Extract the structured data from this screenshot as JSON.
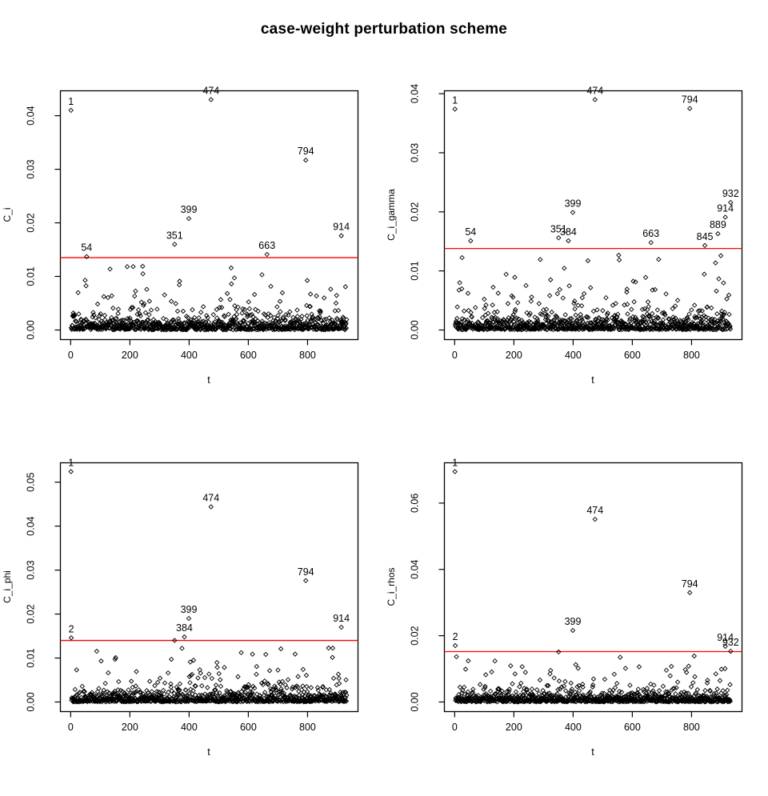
{
  "chart_data": {
    "type": "scatter",
    "title": "case-weight perturbation scheme",
    "xlabel": "t",
    "xlim": [
      -36,
      969
    ],
    "xticks": [
      0,
      200,
      400,
      600,
      800
    ],
    "xtick_labels": [
      "0",
      "200",
      "400",
      "600",
      "800"
    ],
    "n_cases": 932,
    "point_marker": "open-diamond",
    "point_color": "#000000",
    "threshold_color": "#ff0000",
    "grid": "off",
    "legend": "none",
    "noise": {
      "count": 932,
      "small_mean": 0.0009,
      "large_mean": 0.0036,
      "large_fraction": 0.18,
      "reference_threshold": 0.0135
    },
    "panels": [
      {
        "id": "C_i",
        "row": 0,
        "col": 0,
        "ylabel": "C_i",
        "ymax_data": 0.043,
        "yticks": [
          0,
          0.01,
          0.02,
          0.03,
          0.04
        ],
        "ytick_labels": [
          "0.00",
          "0.01",
          "0.02",
          "0.03",
          "0.04"
        ],
        "threshold": 0.0135,
        "noise_seed": 101,
        "labeled_points": [
          {
            "label": "1",
            "t": 1,
            "y": 0.041
          },
          {
            "label": "54",
            "t": 54,
            "y": 0.0137
          },
          {
            "label": "351",
            "t": 351,
            "y": 0.016
          },
          {
            "label": "399",
            "t": 399,
            "y": 0.0208
          },
          {
            "label": "474",
            "t": 474,
            "y": 0.043
          },
          {
            "label": "663",
            "t": 663,
            "y": 0.0141
          },
          {
            "label": "794",
            "t": 794,
            "y": 0.0317
          },
          {
            "label": "914",
            "t": 914,
            "y": 0.0176
          }
        ],
        "extra_points": []
      },
      {
        "id": "C_i_gamma",
        "row": 0,
        "col": 1,
        "ylabel": "C_i_gamma",
        "ymax_data": 0.039,
        "yticks": [
          0,
          0.01,
          0.02,
          0.03,
          0.04
        ],
        "ytick_labels": [
          "0.00",
          "0.01",
          "0.02",
          "0.03",
          "0.04"
        ],
        "threshold": 0.0138,
        "noise_seed": 202,
        "labeled_points": [
          {
            "label": "1",
            "t": 1,
            "y": 0.0374
          },
          {
            "label": "54",
            "t": 54,
            "y": 0.0151
          },
          {
            "label": "351",
            "t": 351,
            "y": 0.0156
          },
          {
            "label": "384",
            "t": 384,
            "y": 0.0151
          },
          {
            "label": "399",
            "t": 399,
            "y": 0.0199
          },
          {
            "label": "474",
            "t": 474,
            "y": 0.039
          },
          {
            "label": "663",
            "t": 663,
            "y": 0.0148
          },
          {
            "label": "794",
            "t": 794,
            "y": 0.0375
          },
          {
            "label": "845",
            "t": 845,
            "y": 0.0143
          },
          {
            "label": "889",
            "t": 889,
            "y": 0.0163
          },
          {
            "label": "914",
            "t": 914,
            "y": 0.0191
          },
          {
            "label": "932",
            "t": 932,
            "y": 0.0216
          }
        ],
        "extra_points": []
      },
      {
        "id": "C_i_phi",
        "row": 1,
        "col": 0,
        "ylabel": "C_i_phi",
        "ymax_data": 0.0524,
        "yticks": [
          0,
          0.01,
          0.02,
          0.03,
          0.04,
          0.05
        ],
        "ytick_labels": [
          "0.00",
          "0.01",
          "0.02",
          "0.03",
          "0.04",
          "0.05"
        ],
        "threshold": 0.014,
        "noise_seed": 303,
        "labeled_points": [
          {
            "label": "1",
            "t": 1,
            "y": 0.0524
          },
          {
            "label": "2",
            "t": 2,
            "y": 0.0146
          },
          {
            "label": "384",
            "t": 384,
            "y": 0.0148
          },
          {
            "label": "399",
            "t": 399,
            "y": 0.019
          },
          {
            "label": "474",
            "t": 474,
            "y": 0.0444
          },
          {
            "label": "794",
            "t": 794,
            "y": 0.0276
          },
          {
            "label": "914",
            "t": 914,
            "y": 0.017
          }
        ],
        "extra_points": [
          {
            "t": 351,
            "y": 0.014
          }
        ]
      },
      {
        "id": "C_i_rhos",
        "row": 1,
        "col": 1,
        "ylabel": "C_i_rhos",
        "ymax_data": 0.0695,
        "yticks": [
          0,
          0.02,
          0.04,
          0.06
        ],
        "ytick_labels": [
          "0.00",
          "0.02",
          "0.04",
          "0.06"
        ],
        "threshold": 0.0152,
        "noise_seed": 404,
        "labeled_points": [
          {
            "label": "1",
            "t": 1,
            "y": 0.0695
          },
          {
            "label": "2",
            "t": 2,
            "y": 0.017
          },
          {
            "label": "399",
            "t": 399,
            "y": 0.0216
          },
          {
            "label": "474",
            "t": 474,
            "y": 0.0551
          },
          {
            "label": "794",
            "t": 794,
            "y": 0.033
          },
          {
            "label": "914",
            "t": 914,
            "y": 0.0168
          },
          {
            "label": "932",
            "t": 932,
            "y": 0.0153
          }
        ],
        "extra_points": [
          {
            "t": 351,
            "y": 0.0151
          }
        ]
      }
    ]
  }
}
